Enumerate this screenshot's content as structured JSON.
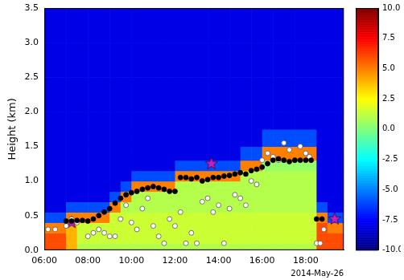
{
  "chart_data": {
    "type": "heatmap",
    "y_label": "Height (km)",
    "annotation": "2014-May-26",
    "xlim": [
      6,
      19.75
    ],
    "xticks": [
      {
        "value": 6,
        "label": "06:00"
      },
      {
        "value": 8,
        "label": "08:00"
      },
      {
        "value": 10,
        "label": "10:00"
      },
      {
        "value": 12,
        "label": "12:00"
      },
      {
        "value": 14,
        "label": "14:00"
      },
      {
        "value": 16,
        "label": "16:00"
      },
      {
        "value": 18,
        "label": "18:00"
      }
    ],
    "ylim": [
      0,
      3.5
    ],
    "yticks": [
      {
        "value": 0,
        "label": "0.0"
      },
      {
        "value": 0.5,
        "label": "0.5"
      },
      {
        "value": 1,
        "label": "1.0"
      },
      {
        "value": 1.5,
        "label": "1.5"
      },
      {
        "value": 2,
        "label": "2.0"
      },
      {
        "value": 2.5,
        "label": "2.5"
      },
      {
        "value": 3,
        "label": "3.0"
      },
      {
        "value": 3.5,
        "label": "3.5"
      }
    ],
    "grid": false,
    "legend": false,
    "heatmap": {
      "x_edges": [
        6,
        6.5,
        7,
        7.5,
        8,
        8.5,
        9,
        9.5,
        10,
        10.5,
        11,
        11.5,
        12,
        12.5,
        13,
        13.5,
        14,
        14.5,
        15,
        15.5,
        16,
        16.5,
        17,
        17.5,
        18,
        18.5,
        19,
        19.5,
        19.75
      ],
      "y_edges": [
        0,
        0.1,
        0.25,
        0.4,
        0.55,
        0.7,
        0.85,
        1.0,
        1.15,
        1.3,
        1.5,
        1.75,
        2.0,
        2.5,
        3.0,
        3.5
      ],
      "values": [
        [
          6,
          6,
          4,
          1,
          1,
          1,
          1,
          1,
          1,
          1,
          1,
          1,
          1,
          1,
          1,
          1,
          1,
          1,
          1,
          1,
          1,
          1,
          1,
          1,
          1,
          6,
          6,
          6
        ],
        [
          6,
          6,
          4,
          1.5,
          1.5,
          1.5,
          1.5,
          1.5,
          1.5,
          1.5,
          1.5,
          1.5,
          1.5,
          1.5,
          1.5,
          1.5,
          1.5,
          1.5,
          1.5,
          1.5,
          1.5,
          1.5,
          1.5,
          1.5,
          1.5,
          6,
          6,
          6
        ],
        [
          5,
          5,
          4,
          1.5,
          1.5,
          1.5,
          1.5,
          1.5,
          1.5,
          1.5,
          1.5,
          1.5,
          1.5,
          1.5,
          1.5,
          1.5,
          1.5,
          1.5,
          1.5,
          1.5,
          1.5,
          1.5,
          1.5,
          1.5,
          1.5,
          6,
          5,
          5
        ],
        [
          -6,
          -6,
          5,
          5,
          5,
          5,
          1.5,
          1.5,
          1.5,
          1.5,
          1.5,
          1.5,
          1.5,
          1.5,
          1.5,
          1.5,
          1.5,
          1.5,
          1.5,
          1.5,
          1.5,
          1.5,
          1.5,
          1.5,
          1.5,
          5,
          -6,
          -6
        ],
        [
          -8,
          -8,
          -6,
          -6,
          -6,
          -6,
          5,
          1,
          1,
          1,
          1,
          1,
          1,
          1,
          1,
          1,
          1,
          1,
          1,
          1,
          1,
          1,
          1,
          1,
          1,
          -6,
          -8,
          -8
        ],
        [
          -8,
          -8,
          -8,
          -8,
          -8,
          -8,
          -6,
          5,
          1,
          1,
          1,
          1,
          1,
          1,
          1,
          1,
          1,
          1,
          1,
          1,
          1,
          1,
          1,
          1,
          1,
          -8,
          -8,
          -8
        ],
        [
          -8,
          -8,
          -8,
          -8,
          -8,
          -8,
          -8,
          -6,
          5,
          5,
          5,
          5,
          1,
          1,
          1,
          1,
          1,
          1,
          1,
          1,
          1,
          1,
          1,
          1,
          1,
          -8,
          -8,
          -8
        ],
        [
          -8,
          -8,
          -8,
          -8,
          -8,
          -8,
          -8,
          -8,
          -6,
          -6,
          -6,
          -6,
          5,
          5,
          5,
          5,
          5,
          5,
          1,
          1,
          1,
          1,
          1,
          1,
          1,
          -8,
          -8,
          -8
        ],
        [
          -8,
          -8,
          -8,
          -8,
          -8,
          -8,
          -8,
          -8,
          -8,
          -8,
          -8,
          -8,
          -6,
          -6,
          -6,
          -6,
          -6,
          -6,
          5,
          5,
          0.5,
          0.5,
          0.5,
          0.5,
          0.5,
          -8,
          -8,
          -8
        ],
        [
          -8,
          -8,
          -8,
          -8,
          -8,
          -8,
          -8,
          -8,
          -8,
          -8,
          -8,
          -8,
          -8,
          -8,
          -8,
          -8,
          -8,
          -8,
          -6,
          -6,
          5,
          5,
          5,
          5,
          5,
          -8,
          -8,
          -8
        ],
        [
          -8,
          -8,
          -8,
          -8,
          -8,
          -8,
          -8,
          -8,
          -8,
          -8,
          -8,
          -8,
          -8,
          -8,
          -8,
          -8,
          -8,
          -8,
          -8,
          -8,
          -6,
          -6,
          -6,
          -6,
          -6,
          -8,
          -8,
          -8
        ],
        [
          -8,
          -8,
          -8,
          -8,
          -8,
          -8,
          -8,
          -8,
          -8,
          -8,
          -8,
          -8,
          -8,
          -8,
          -8,
          -8,
          -8,
          -8,
          -8,
          -8,
          -8,
          -8,
          -8,
          -8,
          -8,
          -8,
          -8,
          -8
        ],
        [
          -8,
          -8,
          -8,
          -8,
          -8,
          -8,
          -8,
          -8,
          -8,
          -8,
          -8,
          -8,
          -8,
          -8,
          -8,
          -8,
          -8,
          -8,
          -8,
          -8,
          -8,
          -8,
          -8,
          -8,
          -8,
          -8,
          -8,
          -8
        ],
        [
          -8,
          -8,
          -8,
          -8,
          -8,
          -8,
          -8,
          -8,
          -8,
          -8,
          -8,
          -8,
          -8,
          -8,
          -8,
          -8,
          -8,
          -8,
          -8,
          -8,
          -8,
          -8,
          -8,
          -8,
          -8,
          -8,
          -8,
          -8
        ],
        [
          -8,
          -8,
          -8,
          -8,
          -8,
          -8,
          -8,
          -8,
          -8,
          -8,
          -8,
          -8,
          -8,
          -8,
          -8,
          -8,
          -8,
          -8,
          -8,
          -8,
          -8,
          -8,
          -8,
          -8,
          -8,
          -8,
          -8,
          -8
        ]
      ]
    },
    "colorbar": {
      "range": [
        -10,
        10
      ],
      "ticks": [
        {
          "value": 10,
          "label": "10.0"
        },
        {
          "value": 7.5,
          "label": "7.5"
        },
        {
          "value": 5,
          "label": "5.0"
        },
        {
          "value": 2.5,
          "label": "2.5"
        },
        {
          "value": 0,
          "label": "0.0"
        },
        {
          "value": -2.5,
          "label": "-2.5"
        },
        {
          "value": -5,
          "label": "-5.0"
        },
        {
          "value": -7.5,
          "label": "-7.5"
        },
        {
          "value": -10,
          "label": "-10.0"
        }
      ]
    },
    "series": [
      {
        "color": "#000000",
        "marker": "circle",
        "x": [
          7.0,
          7.25,
          7.5,
          7.75,
          8.0,
          8.25,
          8.5,
          8.75,
          9.0,
          9.25,
          9.5,
          9.75,
          10.0,
          10.25,
          10.5,
          10.75,
          11.0,
          11.25,
          11.5,
          11.75,
          12.0,
          12.25,
          12.5,
          12.75,
          13.0,
          13.25,
          13.5,
          13.75,
          14.0,
          14.25,
          14.5,
          14.75,
          15.0,
          15.25,
          15.5,
          15.75,
          16.0,
          16.25,
          16.5,
          16.75,
          17.0,
          17.25,
          17.5,
          17.75,
          18.0,
          18.25,
          18.5,
          18.75
        ],
        "y": [
          0.42,
          0.42,
          0.43,
          0.43,
          0.42,
          0.45,
          0.5,
          0.55,
          0.6,
          0.68,
          0.75,
          0.8,
          0.83,
          0.85,
          0.88,
          0.9,
          0.92,
          0.9,
          0.88,
          0.85,
          0.85,
          1.05,
          1.05,
          1.03,
          1.05,
          1.0,
          1.02,
          1.05,
          1.05,
          1.07,
          1.08,
          1.1,
          1.12,
          1.1,
          1.15,
          1.17,
          1.2,
          1.25,
          1.3,
          1.32,
          1.3,
          1.28,
          1.3,
          1.3,
          1.3,
          1.3,
          0.45,
          0.45
        ]
      },
      {
        "color": "#ffffff",
        "marker": "circle",
        "x": [
          6.17,
          6.5,
          7.0,
          7.25,
          7.5,
          8.0,
          8.25,
          8.5,
          8.75,
          9.0,
          9.25,
          9.5,
          9.75,
          10.0,
          10.25,
          10.5,
          10.75,
          11.0,
          11.25,
          11.5,
          11.75,
          12.0,
          12.25,
          12.5,
          12.75,
          13.0,
          13.25,
          13.5,
          13.75,
          14.0,
          14.25,
          14.5,
          14.75,
          15.0,
          15.25,
          15.5,
          15.75,
          16.0,
          16.25,
          16.5,
          16.75,
          17.0,
          17.25,
          17.5,
          17.75,
          18.0,
          18.17,
          18.5,
          18.67,
          18.83
        ],
        "y": [
          0.3,
          0.3,
          0.35,
          0.45,
          0.4,
          0.2,
          0.25,
          0.3,
          0.25,
          0.2,
          0.2,
          0.45,
          0.65,
          0.4,
          0.3,
          0.6,
          0.75,
          0.35,
          0.2,
          0.1,
          0.45,
          0.35,
          0.55,
          0.1,
          0.25,
          0.1,
          0.7,
          0.75,
          0.55,
          0.65,
          0.1,
          0.6,
          0.8,
          0.75,
          0.65,
          1.0,
          0.95,
          1.3,
          1.4,
          1.35,
          1.3,
          1.55,
          1.45,
          1.3,
          1.5,
          1.4,
          1.35,
          0.1,
          0.1,
          0.3
        ]
      },
      {
        "color": "#c020c0",
        "marker": "star",
        "x": [
          7.25,
          13.67,
          19.33
        ],
        "y": [
          0.4,
          1.25,
          0.45
        ]
      }
    ]
  }
}
